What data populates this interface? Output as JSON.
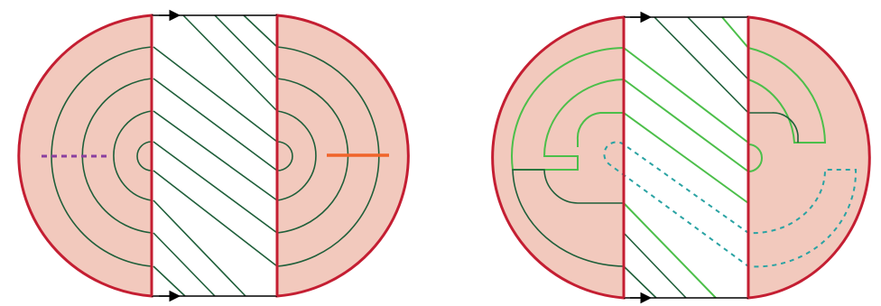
{
  "colors": {
    "disk_fill": "#f2c9bd",
    "disk_border": "#c41e32",
    "dark_curve": "#1f5f3a",
    "light_curve": "#4cbf4a",
    "dashed_purple": "#8a3fa0",
    "orange_segment": "#f0642a",
    "dashed_teal": "#2aa3a3",
    "strip_edge": "#000000"
  },
  "panels": [
    {
      "id": "left-panel",
      "description_key": "concentric-arcs-with-diagonal-strip"
    },
    {
      "id": "right-panel",
      "description_key": "looped-curves-with-diagonal-strip"
    }
  ]
}
